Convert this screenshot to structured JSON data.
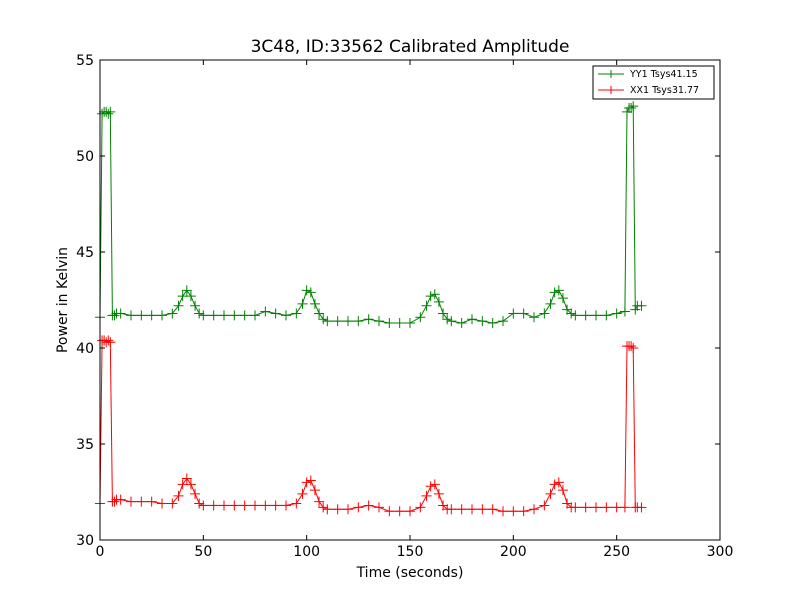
{
  "chart_data": {
    "type": "line",
    "title": "3C48, ID:33562 Calibrated Amplitude",
    "xlabel": "Time (seconds)",
    "ylabel": "Power in Kelvin",
    "xlim": [
      0,
      300
    ],
    "ylim": [
      30,
      55
    ],
    "xticks": [
      0,
      50,
      100,
      150,
      200,
      250,
      300
    ],
    "yticks": [
      30,
      35,
      40,
      45,
      50,
      55
    ],
    "grid": false,
    "legend_position": "top-right",
    "series": [
      {
        "name": "YY1 Tsys41.15",
        "color": "#008000",
        "marker": "+",
        "x": [
          0,
          1,
          2,
          3,
          4,
          5,
          6,
          7,
          8,
          10,
          15,
          20,
          25,
          30,
          35,
          38,
          40,
          42,
          44,
          46,
          48,
          50,
          55,
          60,
          65,
          70,
          75,
          80,
          85,
          90,
          95,
          98,
          100,
          102,
          104,
          106,
          108,
          110,
          115,
          120,
          125,
          130,
          135,
          140,
          145,
          150,
          155,
          158,
          160,
          162,
          164,
          166,
          168,
          170,
          175,
          180,
          185,
          190,
          195,
          200,
          205,
          210,
          215,
          218,
          220,
          222,
          224,
          226,
          228,
          230,
          235,
          240,
          245,
          250,
          254,
          255,
          256,
          257,
          258,
          259,
          260,
          262
        ],
        "y": [
          41.6,
          52.2,
          52.3,
          52.3,
          52.2,
          52.3,
          41.7,
          41.7,
          41.8,
          41.8,
          41.7,
          41.7,
          41.7,
          41.7,
          41.8,
          42.2,
          42.7,
          43.0,
          42.7,
          42.2,
          41.8,
          41.7,
          41.7,
          41.7,
          41.7,
          41.7,
          41.7,
          41.9,
          41.8,
          41.7,
          41.8,
          42.3,
          43.0,
          42.9,
          42.3,
          41.8,
          41.5,
          41.4,
          41.4,
          41.4,
          41.4,
          41.5,
          41.4,
          41.3,
          41.3,
          41.3,
          41.6,
          42.2,
          42.7,
          42.8,
          42.4,
          41.8,
          41.5,
          41.4,
          41.3,
          41.5,
          41.4,
          41.3,
          41.4,
          41.8,
          41.8,
          41.6,
          41.8,
          42.3,
          42.9,
          43.0,
          42.6,
          42.0,
          41.8,
          41.7,
          41.7,
          41.7,
          41.7,
          41.8,
          41.9,
          52.3,
          52.5,
          52.5,
          52.6,
          42.0,
          42.2,
          42.2
        ]
      },
      {
        "name": "XX1 Tsys31.77",
        "color": "#ff0000",
        "marker": "+",
        "x": [
          0,
          1,
          2,
          3,
          4,
          5,
          6,
          7,
          8,
          10,
          15,
          20,
          25,
          30,
          35,
          38,
          40,
          42,
          44,
          46,
          48,
          50,
          55,
          60,
          65,
          70,
          75,
          80,
          85,
          90,
          95,
          98,
          100,
          102,
          104,
          106,
          108,
          110,
          115,
          120,
          125,
          130,
          135,
          140,
          145,
          150,
          155,
          158,
          160,
          162,
          164,
          166,
          168,
          170,
          175,
          180,
          185,
          190,
          195,
          200,
          205,
          210,
          215,
          218,
          220,
          222,
          224,
          226,
          228,
          230,
          235,
          240,
          245,
          250,
          254,
          255,
          256,
          257,
          258,
          259,
          260,
          262
        ],
        "y": [
          31.9,
          40.4,
          40.4,
          40.3,
          40.4,
          40.3,
          32.0,
          32.0,
          32.1,
          32.1,
          32.0,
          32.0,
          32.0,
          31.9,
          31.9,
          32.3,
          32.9,
          33.2,
          32.9,
          32.4,
          31.9,
          31.8,
          31.8,
          31.8,
          31.8,
          31.8,
          31.8,
          31.8,
          31.8,
          31.8,
          31.9,
          32.4,
          33.0,
          33.1,
          32.6,
          32.0,
          31.7,
          31.6,
          31.6,
          31.6,
          31.7,
          31.8,
          31.7,
          31.5,
          31.5,
          31.5,
          31.7,
          32.3,
          32.8,
          32.9,
          32.4,
          31.8,
          31.6,
          31.6,
          31.6,
          31.6,
          31.6,
          31.6,
          31.5,
          31.5,
          31.5,
          31.6,
          31.8,
          32.4,
          32.9,
          33.0,
          32.6,
          31.9,
          31.7,
          31.7,
          31.7,
          31.7,
          31.7,
          31.7,
          31.7,
          40.1,
          40.1,
          40.1,
          40.0,
          31.7,
          31.7,
          31.7
        ]
      }
    ]
  }
}
